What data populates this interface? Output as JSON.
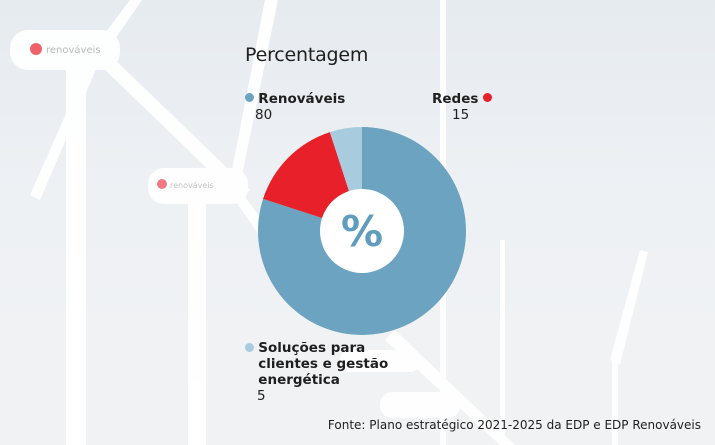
{
  "chart_data": {
    "type": "pie",
    "title": "Percentagem",
    "center_label": "%",
    "categories": [
      "Renováveis",
      "Redes",
      "Soluções para clientes e gestão energética"
    ],
    "values": [
      80,
      15,
      5
    ],
    "colors": [
      "#6ba3c1",
      "#e8202a",
      "#a8ccdd"
    ],
    "legend": [
      {
        "name": "Renováveis",
        "value": "80"
      },
      {
        "name": "Redes",
        "value": "15"
      },
      {
        "name": "Soluções para clientes e gestão energética",
        "value": "5"
      }
    ],
    "source": "Fonte: Plano estratégico 2021-2025 da EDP e EDP Renováveis"
  },
  "background": {
    "brand_label": "renováveis"
  }
}
